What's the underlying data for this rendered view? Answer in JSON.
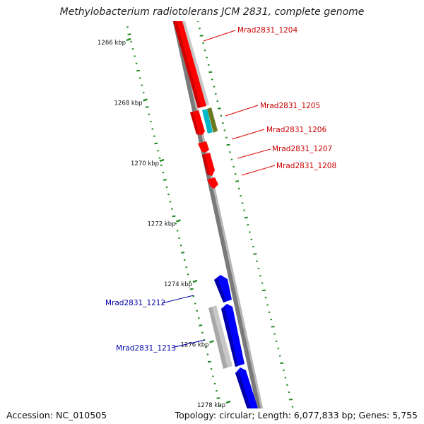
{
  "title": "Methylobacterium radiotolerans JCM 2831, complete genome",
  "footer": {
    "accession": "Accession: NC_010505",
    "summary": "Topology: circular; Length: 6,077,833 bp; Genes: 5,755"
  },
  "colors": {
    "forward_cds": "#ff0000",
    "reverse_cds": "#0000ff",
    "gene_track": "#c0c0c0",
    "gc_dots": "#228b22",
    "backbone": "#808080",
    "label_forward": "#cc0000",
    "label_reverse": "#0000aa"
  },
  "ticks": [
    {
      "kbp": 1266,
      "label": "1266 kbp"
    },
    {
      "kbp": 1268,
      "label": "1268 kbp"
    },
    {
      "kbp": 1270,
      "label": "1270 kbp"
    },
    {
      "kbp": 1272,
      "label": "1272 kbp"
    },
    {
      "kbp": 1274,
      "label": "1274 kbp"
    },
    {
      "kbp": 1276,
      "label": "1276 kbp"
    },
    {
      "kbp": 1278,
      "label": "1278 kbp"
    }
  ],
  "gene_labels": [
    {
      "name": "Mrad2831_1204",
      "strand": "forward"
    },
    {
      "name": "Mrad2831_1205",
      "strand": "forward"
    },
    {
      "name": "Mrad2831_1206",
      "strand": "forward"
    },
    {
      "name": "Mrad2831_1207",
      "strand": "forward"
    },
    {
      "name": "Mrad2831_1208",
      "strand": "forward"
    },
    {
      "name": "Mrad2831_1212",
      "strand": "reverse"
    },
    {
      "name": "Mrad2831_1213",
      "strand": "reverse"
    }
  ]
}
